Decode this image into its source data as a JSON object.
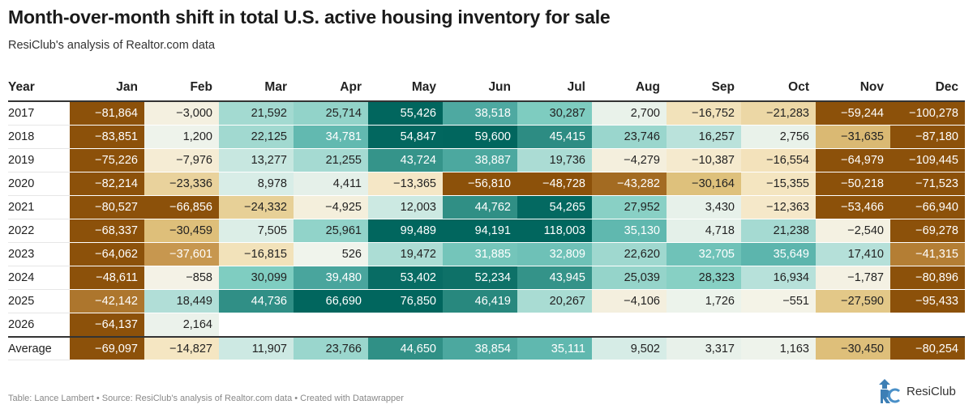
{
  "title": "Month-over-month shift in total U.S. active housing inventory for sale",
  "subtitle": "ResiClub's analysis of Realtor.com data",
  "footer": "Table: Lance Lambert • Source: ResiClub's analysis of Realtor.com data • Created with Datawrapper",
  "logo_text": "ResiClub",
  "colors": {
    "negative_strong": "#8c510a",
    "negative_mid": "#dfc27d",
    "neutral": "#f5f3e8",
    "positive_mid": "#80cdc1",
    "positive_strong": "#01665e"
  },
  "chart_data": {
    "type": "heatmap",
    "row_header": "Year",
    "columns": [
      "Jan",
      "Feb",
      "Mar",
      "Apr",
      "May",
      "Jun",
      "Jul",
      "Aug",
      "Sep",
      "Oct",
      "Nov",
      "Dec"
    ],
    "rows": [
      {
        "label": "2017",
        "values": [
          -81864,
          -3000,
          21592,
          25714,
          55426,
          38518,
          30287,
          2700,
          -16752,
          -21283,
          -59244,
          -100278
        ]
      },
      {
        "label": "2018",
        "values": [
          -83851,
          1200,
          22125,
          34781,
          54847,
          59600,
          45415,
          23746,
          16257,
          2756,
          -31635,
          -87180
        ]
      },
      {
        "label": "2019",
        "values": [
          -75226,
          -7976,
          13277,
          21255,
          43724,
          38887,
          19736,
          -4279,
          -10387,
          -16554,
          -64979,
          -109445
        ]
      },
      {
        "label": "2020",
        "values": [
          -82214,
          -23336,
          8978,
          4411,
          -13365,
          -56810,
          -48728,
          -43282,
          -30164,
          -15355,
          -50218,
          -71523
        ]
      },
      {
        "label": "2021",
        "values": [
          -80527,
          -66856,
          -24332,
          -4925,
          12003,
          44762,
          54265,
          27952,
          3430,
          -12363,
          -53466,
          -66940
        ]
      },
      {
        "label": "2022",
        "values": [
          -68337,
          -30459,
          7505,
          25961,
          99489,
          94191,
          118003,
          35130,
          4718,
          21238,
          -2540,
          -69278
        ]
      },
      {
        "label": "2023",
        "values": [
          -64062,
          -37601,
          -16815,
          526,
          19472,
          31885,
          32809,
          22620,
          32705,
          35649,
          17410,
          -41315
        ]
      },
      {
        "label": "2024",
        "values": [
          -48611,
          -858,
          30099,
          39480,
          53402,
          52234,
          43945,
          25039,
          28323,
          16934,
          -1787,
          -80896
        ]
      },
      {
        "label": "2025",
        "values": [
          -42142,
          18449,
          44736,
          66690,
          76850,
          46419,
          20267,
          -4106,
          1726,
          -551,
          -27590,
          -95433
        ]
      },
      {
        "label": "2026",
        "values": [
          -64137,
          2164,
          null,
          null,
          null,
          null,
          null,
          null,
          null,
          null,
          null,
          null
        ]
      }
    ],
    "summary_row": {
      "label": "Average",
      "values": [
        -69097,
        -14827,
        11907,
        23766,
        44650,
        38854,
        35111,
        9502,
        3317,
        1163,
        -30450,
        -80254
      ]
    }
  }
}
